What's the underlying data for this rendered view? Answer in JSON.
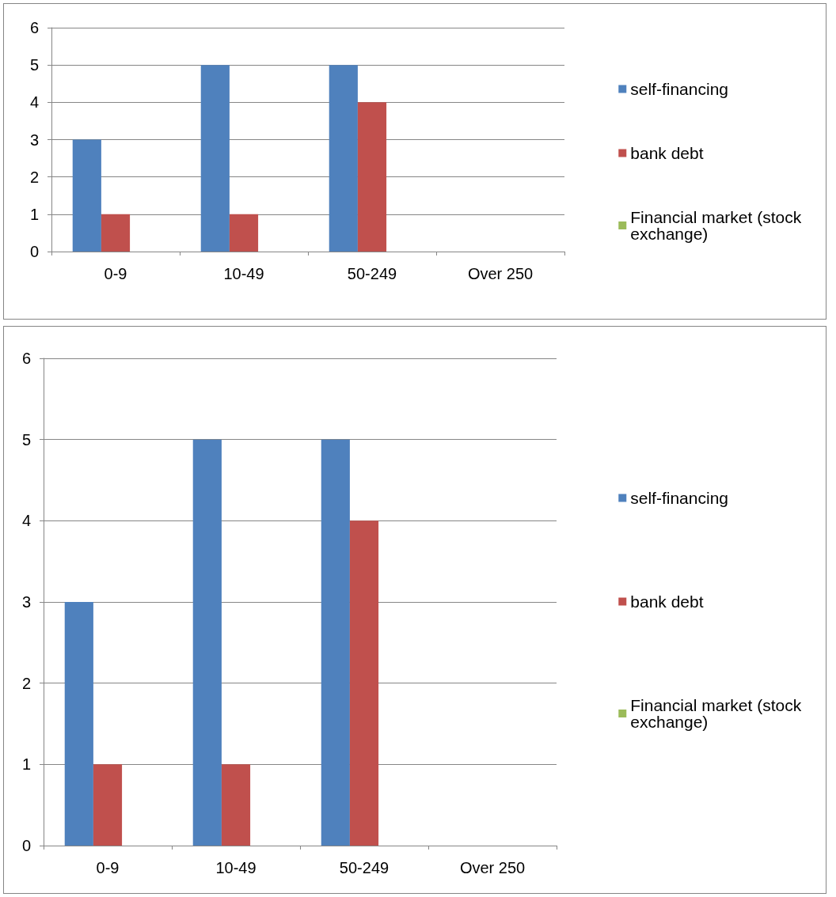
{
  "chart_data": [
    {
      "type": "bar",
      "categories": [
        "0-9",
        "10-49",
        "50-249",
        "Over 250"
      ],
      "series": [
        {
          "name": "self-financing",
          "color": "#4f81bd",
          "values": [
            3,
            5,
            5,
            0
          ]
        },
        {
          "name": "bank debt",
          "color": "#c0504d",
          "values": [
            1,
            1,
            4,
            0
          ]
        },
        {
          "name": "Financial market (stock exchange)",
          "color": "#9bbb59",
          "values": [
            0,
            0,
            0,
            0
          ]
        }
      ],
      "ylim": [
        0,
        6
      ],
      "yticks": [
        0,
        1,
        2,
        3,
        4,
        5,
        6
      ],
      "grid": "y",
      "legend": "right"
    },
    {
      "type": "bar",
      "categories": [
        "0-9",
        "10-49",
        "50-249",
        "Over 250"
      ],
      "series": [
        {
          "name": "self-financing",
          "color": "#4f81bd",
          "values": [
            3,
            5,
            5,
            0
          ]
        },
        {
          "name": "bank debt",
          "color": "#c0504d",
          "values": [
            1,
            1,
            4,
            0
          ]
        },
        {
          "name": "Financial market (stock exchange)",
          "color": "#9bbb59",
          "values": [
            0,
            0,
            0,
            0
          ]
        }
      ],
      "ylim": [
        0,
        6
      ],
      "yticks": [
        0,
        1,
        2,
        3,
        4,
        5,
        6
      ],
      "grid": "y",
      "legend": "right"
    }
  ]
}
